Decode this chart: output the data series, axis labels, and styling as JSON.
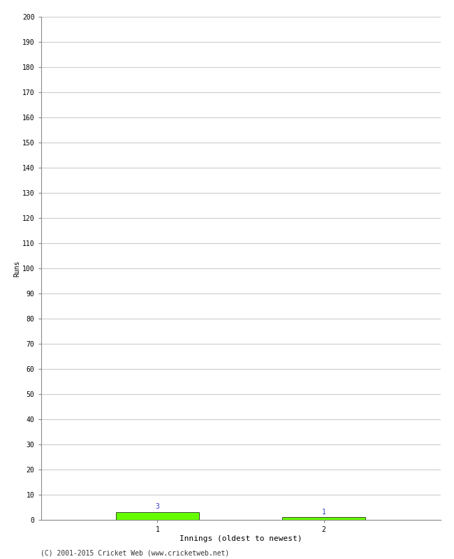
{
  "xlabel": "Innings (oldest to newest)",
  "ylabel": "Runs",
  "bar_positions": [
    1,
    2
  ],
  "bar_values": [
    3,
    1
  ],
  "bar_colors": [
    "#66ff00",
    "#66ff00"
  ],
  "bar_width": 0.5,
  "value_labels": [
    "3",
    "1"
  ],
  "value_label_color": "#3333cc",
  "xtick_labels": [
    "1",
    "2"
  ],
  "ytick_start": 0,
  "ytick_end": 200,
  "ytick_step": 10,
  "ylim": [
    0,
    200
  ],
  "xlim": [
    0.3,
    2.7
  ],
  "background_color": "#ffffff",
  "grid_color": "#cccccc",
  "footer_text": "(C) 2001-2015 Cricket Web (www.cricketweb.net)",
  "ylabel_fontsize": 7,
  "xlabel_fontsize": 8,
  "tick_fontsize": 7,
  "value_label_fontsize": 7,
  "footer_fontsize": 7
}
